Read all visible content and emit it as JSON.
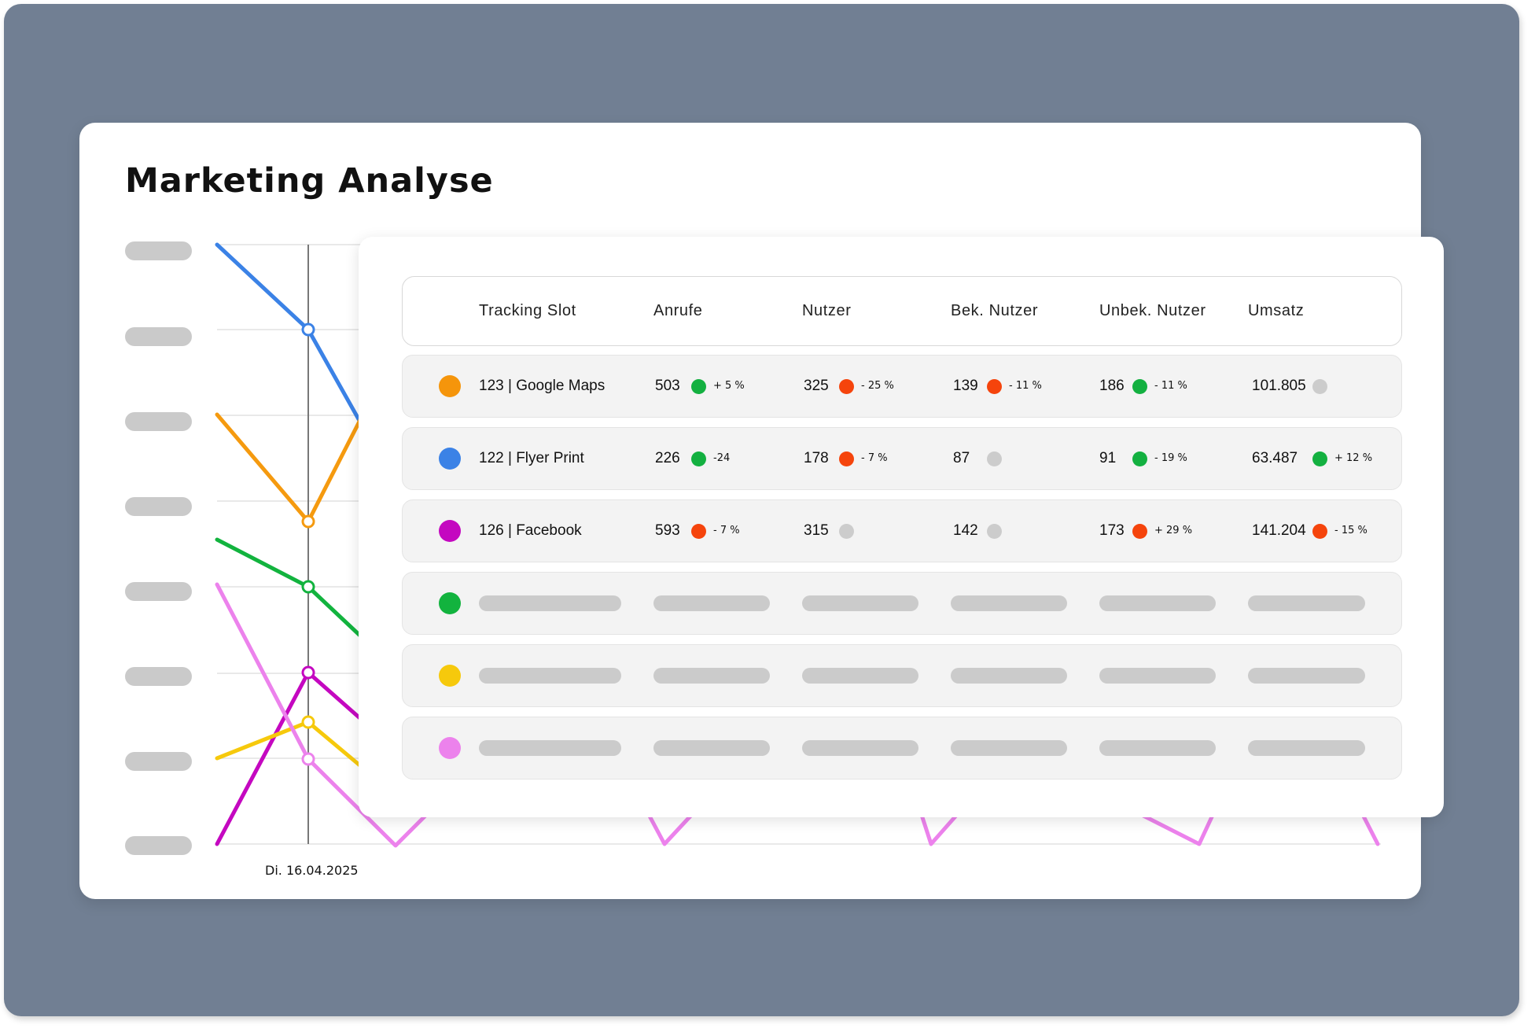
{
  "title": "Marketing Analyse",
  "colors": {
    "background": "#717f93",
    "positive": "#13b040",
    "negative": "#f5440c",
    "neutral": "#cccccc"
  },
  "chart": {
    "type": "line",
    "x_label_selected": "Di.  16.04.2025",
    "series_colors": [
      "#3b82e6",
      "#f59a0f",
      "#12b33e",
      "#c408c0",
      "#f6c90c",
      "#ec82ec"
    ]
  },
  "table": {
    "headers": [
      "Tracking Slot",
      "Anrufe",
      "Nutzer",
      "Bek. Nutzer",
      "Unbek. Nutzer",
      "Umsatz"
    ],
    "rows": [
      {
        "color": "#f5950b",
        "slot": "123 | Google Maps",
        "cells": [
          {
            "value": "503",
            "status": "positive",
            "change": "+ 5 %"
          },
          {
            "value": "325",
            "status": "negative",
            "change": "- 25 %"
          },
          {
            "value": "139",
            "status": "negative",
            "change": "- 11 %"
          },
          {
            "value": "186",
            "status": "positive",
            "change": "- 11 %"
          },
          {
            "value": "101.805",
            "status": "neutral",
            "change": ""
          }
        ]
      },
      {
        "color": "#3b82e6",
        "slot": "122 | Flyer Print",
        "cells": [
          {
            "value": "226",
            "status": "positive",
            "change": "-24"
          },
          {
            "value": "178",
            "status": "negative",
            "change": "- 7 %"
          },
          {
            "value": "87",
            "status": "neutral",
            "change": ""
          },
          {
            "value": "91",
            "status": "positive",
            "change": "- 19 %"
          },
          {
            "value": "63.487",
            "status": "positive",
            "change": "+ 12 %"
          }
        ]
      },
      {
        "color": "#c408c0",
        "slot": "126 | Facebook",
        "cells": [
          {
            "value": "593",
            "status": "negative",
            "change": "- 7 %"
          },
          {
            "value": "315",
            "status": "neutral",
            "change": ""
          },
          {
            "value": "142",
            "status": "neutral",
            "change": ""
          },
          {
            "value": "173",
            "status": "negative",
            "change": "+ 29 %"
          },
          {
            "value": "141.204",
            "status": "negative",
            "change": "- 15 %"
          }
        ]
      }
    ],
    "placeholder_rows": [
      {
        "color": "#12b33e"
      },
      {
        "color": "#f6c90c"
      },
      {
        "color": "#ec82ec"
      }
    ]
  }
}
